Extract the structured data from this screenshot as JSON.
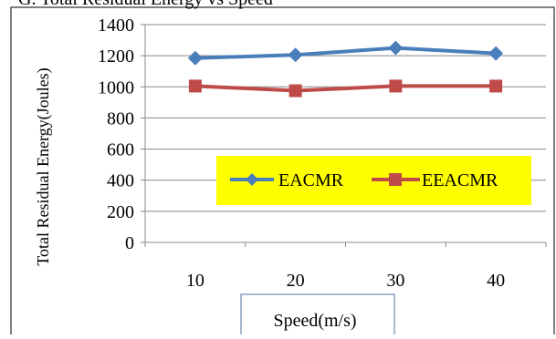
{
  "chart_data": {
    "type": "line",
    "title": "G. Total Residual Energy vs Speed",
    "xlabel": "Speed(m/s)",
    "ylabel": "Total Residual  Energy(Joules)",
    "categories": [
      "10",
      "20",
      "30",
      "40"
    ],
    "ylim": [
      0,
      1400
    ],
    "yticks": [
      0,
      200,
      400,
      600,
      800,
      1000,
      1200,
      1400
    ],
    "grid": true,
    "legend_position": "bottom-right",
    "legend_background": "#ffff00",
    "series": [
      {
        "name": "EACMR",
        "values": [
          1185,
          1205,
          1250,
          1215
        ],
        "color": "#4a7ebb",
        "marker": "diamond"
      },
      {
        "name": "EEACMR",
        "values": [
          1005,
          975,
          1005,
          1005
        ],
        "color": "#be4b48",
        "marker": "square"
      }
    ]
  }
}
